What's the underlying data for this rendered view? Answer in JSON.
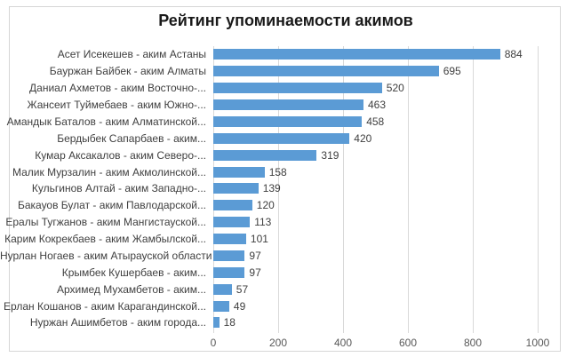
{
  "chart_data": {
    "type": "bar",
    "orientation": "horizontal",
    "title": "Рейтинг упоминаемости акимов",
    "categories": [
      "Асет Исекешев - аким Астаны",
      "Бауржан Байбек - аким Алматы",
      "Даниал Ахметов - аким Восточно-...",
      "Жансеит Туймебаев - аким Южно-...",
      "Амандык Баталов - аким Алматинской...",
      "Бердыбек Сапарбаев - аким...",
      "Кумар Аксакалов - аким Северо-...",
      "Малик Мурзалин - аким Акмолинской...",
      "Кульгинов Алтай - аким Западно-...",
      "Бакауов Булат - аким Павлодарской...",
      "Ералы Тугжанов - аким Мангистауской...",
      "Карим Кокрекбаев - аким Жамбылской...",
      "Нурлан Ногаев - аким Атырауской области",
      "Крымбек Кушербаев - аким...",
      "Архимед Мухамбетов - аким...",
      "Ерлан Кошанов - аким Карагандинской...",
      "Нуржан Ашимбетов - аким города..."
    ],
    "values": [
      884,
      695,
      520,
      463,
      458,
      420,
      319,
      158,
      139,
      120,
      113,
      101,
      97,
      97,
      57,
      49,
      18
    ],
    "xlabel": "",
    "ylabel": "",
    "xlim": [
      0,
      1000
    ],
    "x_ticks": [
      0,
      200,
      400,
      600,
      800,
      1000
    ],
    "grid": "vertical",
    "legend": "none",
    "value_labels": "outside-end",
    "colors": {
      "bar": "#5b9bd5",
      "gridline": "#d9d9d9",
      "frame_border": "#d6d6d6",
      "category_label": "#3f3f3f",
      "value_label": "#3f3f3f",
      "tick_label": "#595959",
      "title": "#1a1a1a",
      "background": "#ffffff"
    }
  }
}
